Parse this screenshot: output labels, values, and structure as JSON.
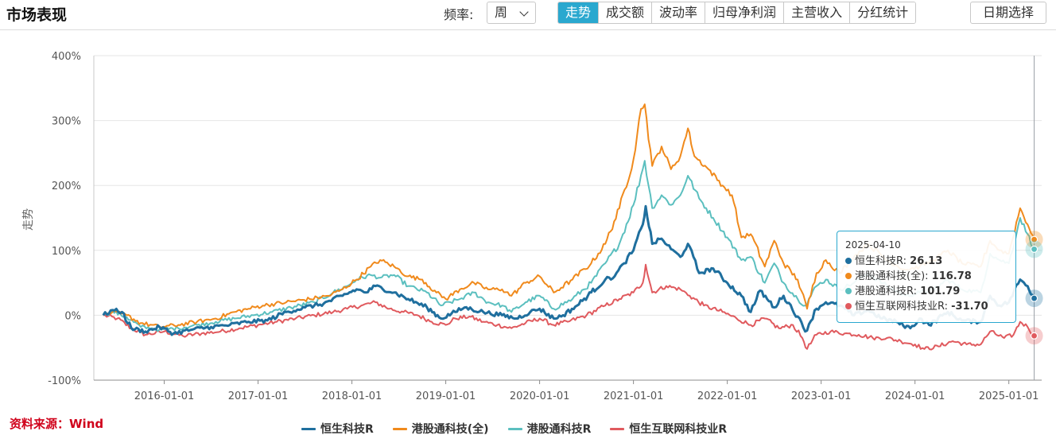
{
  "header": {
    "title": "市场表现",
    "frequency_label": "频率:",
    "frequency_value": "周",
    "tabs": [
      {
        "label": "走势",
        "active": true
      },
      {
        "label": "成交额",
        "active": false
      },
      {
        "label": "波动率",
        "active": false
      },
      {
        "label": "归母净利润",
        "active": false
      },
      {
        "label": "主营收入",
        "active": false
      },
      {
        "label": "分红统计",
        "active": false
      }
    ],
    "date_button": "日期选择"
  },
  "source_note": "资料来源：Wind",
  "tooltip": {
    "date": "2025-04-10",
    "rows": [
      {
        "label": "恒生科技R: ",
        "value": "26.13",
        "color": "#1f6f9e"
      },
      {
        "label": "港股通科技(全): ",
        "value": "116.78",
        "color": "#f08a1c"
      },
      {
        "label": "港股通科技R: ",
        "value": "101.79",
        "color": "#5bbfbf"
      },
      {
        "label": "恒生互联网科技业R: ",
        "value": "-31.70",
        "color": "#e05a5e"
      }
    ]
  },
  "chart_data": {
    "type": "line",
    "ylabel": "走势",
    "ylim": [
      -100,
      400
    ],
    "yticks": [
      "400%",
      "300%",
      "200%",
      "100%",
      "0%",
      "-100%"
    ],
    "ytick_values": [
      400,
      300,
      200,
      100,
      0,
      -100
    ],
    "xlim": [
      2015.25,
      2025.35
    ],
    "xtick_labels": [
      "2016-01-01",
      "2017-01-01",
      "2018-01-01",
      "2019-01-01",
      "2020-01-01",
      "2021-01-01",
      "2022-01-01",
      "2023-01-01",
      "2024-01-01",
      "2025-01-01"
    ],
    "xtick_values": [
      2016.0,
      2017.0,
      2018.0,
      2019.0,
      2020.0,
      2021.0,
      2022.0,
      2023.0,
      2024.0,
      2025.0
    ],
    "grid": true,
    "legend_position": "bottom",
    "cursor_x": 2025.27,
    "series": [
      {
        "name": "恒生科技R",
        "color": "#1f6f9e",
        "end_value": 26.13,
        "points": [
          [
            2015.35,
            0
          ],
          [
            2015.45,
            8
          ],
          [
            2015.55,
            5
          ],
          [
            2015.65,
            -20
          ],
          [
            2015.8,
            -25
          ],
          [
            2015.95,
            -18
          ],
          [
            2016.1,
            -28
          ],
          [
            2016.3,
            -22
          ],
          [
            2016.5,
            -18
          ],
          [
            2016.7,
            -15
          ],
          [
            2016.9,
            -10
          ],
          [
            2017.1,
            -8
          ],
          [
            2017.3,
            5
          ],
          [
            2017.5,
            12
          ],
          [
            2017.7,
            18
          ],
          [
            2017.9,
            30
          ],
          [
            2018.05,
            40
          ],
          [
            2018.15,
            35
          ],
          [
            2018.25,
            45
          ],
          [
            2018.45,
            35
          ],
          [
            2018.6,
            25
          ],
          [
            2018.8,
            12
          ],
          [
            2018.95,
            -5
          ],
          [
            2019.1,
            5
          ],
          [
            2019.2,
            12
          ],
          [
            2019.4,
            5
          ],
          [
            2019.6,
            0
          ],
          [
            2019.75,
            -5
          ],
          [
            2019.9,
            5
          ],
          [
            2020.0,
            10
          ],
          [
            2020.15,
            -5
          ],
          [
            2020.25,
            0
          ],
          [
            2020.4,
            15
          ],
          [
            2020.55,
            35
          ],
          [
            2020.7,
            55
          ],
          [
            2020.8,
            60
          ],
          [
            2020.9,
            80
          ],
          [
            2021.0,
            100
          ],
          [
            2021.1,
            140
          ],
          [
            2021.13,
            168
          ],
          [
            2021.2,
            110
          ],
          [
            2021.3,
            118
          ],
          [
            2021.4,
            102
          ],
          [
            2021.5,
            90
          ],
          [
            2021.58,
            110
          ],
          [
            2021.7,
            65
          ],
          [
            2021.85,
            72
          ],
          [
            2022.0,
            50
          ],
          [
            2022.15,
            30
          ],
          [
            2022.25,
            5
          ],
          [
            2022.35,
            38
          ],
          [
            2022.5,
            12
          ],
          [
            2022.6,
            30
          ],
          [
            2022.75,
            -2
          ],
          [
            2022.83,
            -25
          ],
          [
            2022.95,
            10
          ],
          [
            2023.05,
            20
          ],
          [
            2023.2,
            15
          ],
          [
            2023.35,
            0
          ],
          [
            2023.5,
            8
          ],
          [
            2023.65,
            -5
          ],
          [
            2023.8,
            -10
          ],
          [
            2023.95,
            -20
          ],
          [
            2024.05,
            -5
          ],
          [
            2024.15,
            -15
          ],
          [
            2024.35,
            5
          ],
          [
            2024.5,
            -8
          ],
          [
            2024.7,
            -10
          ],
          [
            2024.8,
            30
          ],
          [
            2024.9,
            15
          ],
          [
            2025.0,
            20
          ],
          [
            2025.12,
            55
          ],
          [
            2025.2,
            45
          ],
          [
            2025.27,
            26.13
          ]
        ]
      },
      {
        "name": "港股通科技(全)",
        "color": "#f08a1c",
        "end_value": 116.78,
        "points": [
          [
            2015.35,
            0
          ],
          [
            2015.45,
            5
          ],
          [
            2015.6,
            0
          ],
          [
            2015.75,
            -12
          ],
          [
            2015.95,
            -18
          ],
          [
            2016.15,
            -15
          ],
          [
            2016.35,
            -10
          ],
          [
            2016.55,
            -5
          ],
          [
            2016.75,
            5
          ],
          [
            2016.9,
            10
          ],
          [
            2017.05,
            15
          ],
          [
            2017.3,
            20
          ],
          [
            2017.55,
            25
          ],
          [
            2017.75,
            30
          ],
          [
            2017.9,
            40
          ],
          [
            2018.05,
            55
          ],
          [
            2018.2,
            75
          ],
          [
            2018.3,
            85
          ],
          [
            2018.45,
            75
          ],
          [
            2018.6,
            60
          ],
          [
            2018.75,
            55
          ],
          [
            2018.9,
            35
          ],
          [
            2019.0,
            25
          ],
          [
            2019.15,
            40
          ],
          [
            2019.3,
            50
          ],
          [
            2019.45,
            40
          ],
          [
            2019.6,
            40
          ],
          [
            2019.7,
            30
          ],
          [
            2019.85,
            50
          ],
          [
            2020.0,
            60
          ],
          [
            2020.15,
            35
          ],
          [
            2020.35,
            55
          ],
          [
            2020.55,
            80
          ],
          [
            2020.7,
            110
          ],
          [
            2020.85,
            165
          ],
          [
            2021.0,
            240
          ],
          [
            2021.08,
            318
          ],
          [
            2021.12,
            325
          ],
          [
            2021.2,
            230
          ],
          [
            2021.3,
            260
          ],
          [
            2021.4,
            225
          ],
          [
            2021.5,
            245
          ],
          [
            2021.58,
            288
          ],
          [
            2021.65,
            245
          ],
          [
            2021.8,
            225
          ],
          [
            2021.95,
            200
          ],
          [
            2022.05,
            185
          ],
          [
            2022.15,
            120
          ],
          [
            2022.25,
            125
          ],
          [
            2022.4,
            75
          ],
          [
            2022.5,
            115
          ],
          [
            2022.6,
            80
          ],
          [
            2022.75,
            55
          ],
          [
            2022.85,
            10
          ],
          [
            2022.95,
            65
          ],
          [
            2023.05,
            85
          ],
          [
            2023.2,
            65
          ],
          [
            2023.35,
            90
          ],
          [
            2023.5,
            110
          ],
          [
            2023.7,
            85
          ],
          [
            2023.9,
            70
          ],
          [
            2024.05,
            75
          ],
          [
            2024.2,
            85
          ],
          [
            2024.35,
            100
          ],
          [
            2024.5,
            80
          ],
          [
            2024.7,
            75
          ],
          [
            2024.8,
            115
          ],
          [
            2024.9,
            100
          ],
          [
            2025.0,
            95
          ],
          [
            2025.12,
            165
          ],
          [
            2025.2,
            140
          ],
          [
            2025.27,
            116.78
          ]
        ]
      },
      {
        "name": "港股通科技R",
        "color": "#5bbfbf",
        "end_value": 101.79,
        "points": [
          [
            2015.35,
            0
          ],
          [
            2015.45,
            6
          ],
          [
            2015.6,
            -3
          ],
          [
            2015.75,
            -18
          ],
          [
            2015.95,
            -22
          ],
          [
            2016.15,
            -20
          ],
          [
            2016.35,
            -15
          ],
          [
            2016.55,
            -10
          ],
          [
            2016.75,
            -5
          ],
          [
            2016.95,
            0
          ],
          [
            2017.15,
            5
          ],
          [
            2017.35,
            12
          ],
          [
            2017.6,
            20
          ],
          [
            2017.8,
            35
          ],
          [
            2017.95,
            45
          ],
          [
            2018.05,
            55
          ],
          [
            2018.2,
            62
          ],
          [
            2018.3,
            58
          ],
          [
            2018.45,
            62
          ],
          [
            2018.6,
            45
          ],
          [
            2018.8,
            35
          ],
          [
            2018.95,
            15
          ],
          [
            2019.15,
            25
          ],
          [
            2019.3,
            35
          ],
          [
            2019.45,
            20
          ],
          [
            2019.6,
            15
          ],
          [
            2019.7,
            5
          ],
          [
            2019.85,
            20
          ],
          [
            2020.0,
            30
          ],
          [
            2020.15,
            10
          ],
          [
            2020.35,
            25
          ],
          [
            2020.55,
            50
          ],
          [
            2020.7,
            80
          ],
          [
            2020.85,
            110
          ],
          [
            2021.0,
            170
          ],
          [
            2021.12,
            238
          ],
          [
            2021.2,
            165
          ],
          [
            2021.3,
            185
          ],
          [
            2021.4,
            170
          ],
          [
            2021.5,
            185
          ],
          [
            2021.58,
            215
          ],
          [
            2021.7,
            180
          ],
          [
            2021.85,
            150
          ],
          [
            2022.0,
            120
          ],
          [
            2022.15,
            85
          ],
          [
            2022.25,
            90
          ],
          [
            2022.4,
            50
          ],
          [
            2022.5,
            80
          ],
          [
            2022.6,
            50
          ],
          [
            2022.75,
            25
          ],
          [
            2022.83,
            15
          ],
          [
            2022.95,
            45
          ],
          [
            2023.05,
            55
          ],
          [
            2023.2,
            40
          ],
          [
            2023.35,
            50
          ],
          [
            2023.5,
            65
          ],
          [
            2023.7,
            45
          ],
          [
            2023.9,
            30
          ],
          [
            2024.05,
            35
          ],
          [
            2024.2,
            40
          ],
          [
            2024.35,
            55
          ],
          [
            2024.5,
            40
          ],
          [
            2024.7,
            35
          ],
          [
            2024.8,
            95
          ],
          [
            2024.9,
            85
          ],
          [
            2025.0,
            80
          ],
          [
            2025.12,
            150
          ],
          [
            2025.2,
            125
          ],
          [
            2025.27,
            101.79
          ]
        ]
      },
      {
        "name": "恒生互联网科技业R",
        "color": "#e05a5e",
        "end_value": -31.7,
        "points": [
          [
            2015.35,
            0
          ],
          [
            2015.5,
            -5
          ],
          [
            2015.65,
            -20
          ],
          [
            2015.8,
            -30
          ],
          [
            2016.0,
            -25
          ],
          [
            2016.2,
            -32
          ],
          [
            2016.4,
            -28
          ],
          [
            2016.6,
            -25
          ],
          [
            2016.8,
            -20
          ],
          [
            2017.0,
            -15
          ],
          [
            2017.2,
            -10
          ],
          [
            2017.4,
            -5
          ],
          [
            2017.6,
            0
          ],
          [
            2017.8,
            5
          ],
          [
            2017.95,
            10
          ],
          [
            2018.1,
            15
          ],
          [
            2018.25,
            20
          ],
          [
            2018.4,
            10
          ],
          [
            2018.55,
            5
          ],
          [
            2018.7,
            0
          ],
          [
            2018.85,
            -10
          ],
          [
            2019.0,
            -15
          ],
          [
            2019.1,
            -5
          ],
          [
            2019.25,
            -2
          ],
          [
            2019.4,
            -10
          ],
          [
            2019.55,
            -15
          ],
          [
            2019.7,
            -20
          ],
          [
            2019.85,
            -12
          ],
          [
            2020.0,
            -5
          ],
          [
            2020.15,
            -15
          ],
          [
            2020.3,
            -10
          ],
          [
            2020.5,
            0
          ],
          [
            2020.7,
            15
          ],
          [
            2020.85,
            25
          ],
          [
            2021.0,
            35
          ],
          [
            2021.1,
            50
          ],
          [
            2021.13,
            78
          ],
          [
            2021.2,
            35
          ],
          [
            2021.35,
            45
          ],
          [
            2021.5,
            40
          ],
          [
            2021.6,
            30
          ],
          [
            2021.75,
            15
          ],
          [
            2021.95,
            5
          ],
          [
            2022.1,
            -5
          ],
          [
            2022.25,
            -15
          ],
          [
            2022.4,
            -5
          ],
          [
            2022.55,
            -20
          ],
          [
            2022.7,
            -15
          ],
          [
            2022.8,
            -35
          ],
          [
            2022.85,
            -52
          ],
          [
            2022.95,
            -30
          ],
          [
            2023.1,
            -25
          ],
          [
            2023.25,
            -28
          ],
          [
            2023.4,
            -30
          ],
          [
            2023.55,
            -35
          ],
          [
            2023.7,
            -35
          ],
          [
            2023.85,
            -40
          ],
          [
            2024.0,
            -45
          ],
          [
            2024.1,
            -52
          ],
          [
            2024.25,
            -48
          ],
          [
            2024.4,
            -40
          ],
          [
            2024.55,
            -45
          ],
          [
            2024.7,
            -45
          ],
          [
            2024.8,
            -25
          ],
          [
            2024.95,
            -35
          ],
          [
            2025.05,
            -30
          ],
          [
            2025.12,
            -10
          ],
          [
            2025.2,
            -18
          ],
          [
            2025.27,
            -31.7
          ]
        ]
      }
    ]
  }
}
